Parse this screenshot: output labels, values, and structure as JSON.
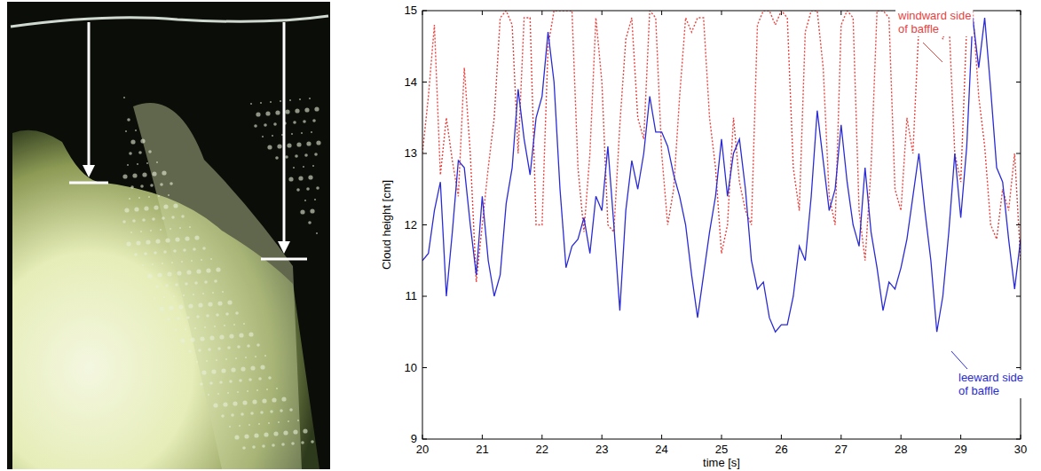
{
  "chart_data": {
    "type": "line",
    "x_label": "time [s]",
    "y_label": "Cloud height [cm]",
    "x": [
      20.0,
      20.1,
      20.2,
      20.3,
      20.4,
      20.5,
      20.6,
      20.7,
      20.8,
      20.9,
      21.0,
      21.1,
      21.2,
      21.3,
      21.4,
      21.5,
      21.6,
      21.7,
      21.8,
      21.9,
      22.0,
      22.1,
      22.2,
      22.3,
      22.4,
      22.5,
      22.6,
      22.7,
      22.8,
      22.9,
      23.0,
      23.1,
      23.2,
      23.3,
      23.4,
      23.5,
      23.6,
      23.7,
      23.8,
      23.9,
      24.0,
      24.1,
      24.2,
      24.3,
      24.4,
      24.5,
      24.6,
      24.7,
      24.8,
      24.9,
      25.0,
      25.1,
      25.2,
      25.3,
      25.4,
      25.5,
      25.6,
      25.7,
      25.8,
      25.9,
      26.0,
      26.1,
      26.2,
      26.3,
      26.4,
      26.5,
      26.6,
      26.7,
      26.8,
      26.9,
      27.0,
      27.1,
      27.2,
      27.3,
      27.4,
      27.5,
      27.6,
      27.7,
      27.8,
      27.9,
      28.0,
      28.1,
      28.2,
      28.3,
      28.4,
      28.5,
      28.6,
      28.7,
      28.8,
      28.9,
      29.0,
      29.1,
      29.2,
      29.3,
      29.4,
      29.5,
      29.6,
      29.7,
      29.8,
      29.9,
      30.0
    ],
    "series": [
      {
        "name": "windward side of baffle",
        "color": "#e8433f",
        "line_style": "dotted",
        "values": [
          13.0,
          13.8,
          14.8,
          12.7,
          13.5,
          12.9,
          12.4,
          14.2,
          13.0,
          11.2,
          12.0,
          12.8,
          13.5,
          14.9,
          15.0,
          14.8,
          13.0,
          14.9,
          14.9,
          12.0,
          12.0,
          14.5,
          15.0,
          15.0,
          15.0,
          15.0,
          12.8,
          11.9,
          13.0,
          14.9,
          14.0,
          12.0,
          11.9,
          13.4,
          14.6,
          14.9,
          13.5,
          13.2,
          15.0,
          14.9,
          13.0,
          12.0,
          12.5,
          13.8,
          14.9,
          14.7,
          14.9,
          14.9,
          13.5,
          12.8,
          11.6,
          12.0,
          13.5,
          12.6,
          12.2,
          12.0,
          14.8,
          15.0,
          15.0,
          14.8,
          15.0,
          14.9,
          12.8,
          12.2,
          14.7,
          15.0,
          15.0,
          14.2,
          12.4,
          12.0,
          14.8,
          15.0,
          14.9,
          12.2,
          11.5,
          12.8,
          15.0,
          15.0,
          14.9,
          12.5,
          12.2,
          13.5,
          13.0,
          14.8,
          15.0,
          15.0,
          15.0,
          14.6,
          14.9,
          13.0,
          12.6,
          14.8,
          15.0,
          13.8,
          13.1,
          12.0,
          11.8,
          12.5,
          12.2,
          13.0,
          11.5
        ]
      },
      {
        "name": "leeward side of baffle",
        "color": "#2b2bd6",
        "line_style": "solid",
        "values": [
          11.5,
          11.6,
          12.2,
          12.6,
          11.0,
          11.9,
          12.9,
          12.8,
          12.0,
          11.3,
          12.4,
          11.5,
          11.0,
          11.3,
          12.3,
          12.8,
          13.9,
          13.2,
          12.7,
          13.5,
          13.8,
          14.7,
          14.0,
          12.5,
          11.4,
          11.7,
          11.8,
          12.1,
          11.6,
          12.4,
          12.2,
          13.1,
          12.0,
          10.8,
          12.2,
          12.9,
          12.5,
          13.0,
          13.8,
          13.3,
          13.3,
          13.1,
          12.7,
          12.4,
          12.0,
          11.3,
          10.7,
          11.3,
          11.9,
          12.4,
          13.2,
          12.4,
          13.0,
          13.2,
          12.5,
          11.5,
          11.1,
          11.2,
          10.7,
          10.5,
          10.6,
          10.6,
          11.0,
          11.7,
          11.5,
          12.4,
          13.6,
          12.9,
          12.2,
          12.5,
          13.4,
          12.6,
          12.0,
          11.7,
          12.8,
          11.9,
          11.4,
          10.8,
          11.2,
          11.1,
          11.4,
          11.8,
          12.4,
          13.0,
          12.2,
          11.5,
          10.5,
          11.0,
          11.9,
          13.0,
          12.1,
          13.1,
          14.9,
          14.2,
          14.9,
          13.9,
          12.8,
          12.6,
          11.8,
          11.1,
          11.8
        ]
      }
    ],
    "xlim": [
      20,
      30
    ],
    "xticks": [
      20,
      21,
      22,
      23,
      24,
      25,
      26,
      27,
      28,
      29,
      30
    ],
    "ylim": [
      9,
      15
    ],
    "yticks": [
      9,
      10,
      11,
      12,
      13,
      14,
      15
    ],
    "grid": false
  }
}
